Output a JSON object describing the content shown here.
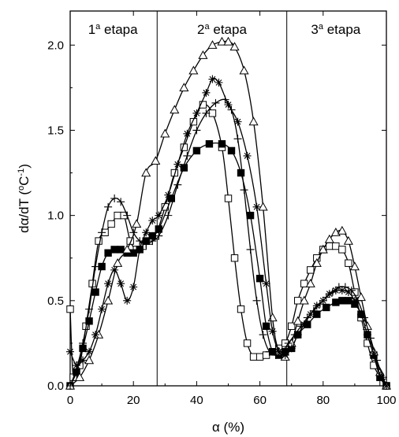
{
  "chart_data": {
    "type": "line",
    "xlabel": "α (%)",
    "ylabel_parts": {
      "base": "dα/dT (",
      "deg": "o",
      "unit": "C",
      "exp": "-1",
      "close": ")"
    },
    "xlim": [
      0,
      100
    ],
    "ylim": [
      0,
      2.2
    ],
    "xticks": [
      0,
      20,
      40,
      60,
      80,
      100
    ],
    "yticks": [
      0.0,
      0.5,
      1.0,
      1.5,
      2.0
    ],
    "xtick_labels": [
      "0",
      "20",
      "40",
      "60",
      "80",
      "100"
    ],
    "ytick_labels": [
      "0.0",
      "0.5",
      "1.0",
      "1.5",
      "2.0"
    ],
    "stage_dividers": [
      27.5,
      68.5
    ],
    "stages": [
      {
        "num": "1",
        "sup": "a",
        "word": " etapa",
        "x": 13.5
      },
      {
        "num": "2",
        "sup": "a",
        "word": " etapa",
        "x": 48
      },
      {
        "num": "3",
        "sup": "a",
        "word": " etapa",
        "x": 84
      }
    ],
    "grid": false,
    "legend": "none",
    "series": [
      {
        "marker": "open-square",
        "x": [
          0,
          1,
          3,
          5,
          7,
          9,
          11,
          13,
          15,
          17,
          19,
          21,
          23,
          25,
          27,
          30,
          33,
          36,
          39,
          42,
          45,
          48,
          50,
          52,
          54,
          56,
          58,
          60,
          62,
          64,
          66,
          68,
          70,
          72,
          74,
          76,
          78,
          80,
          82,
          84,
          86,
          88,
          90,
          92,
          94,
          96,
          98,
          99,
          100
        ],
        "y": [
          0.45,
          0.05,
          0.12,
          0.35,
          0.6,
          0.85,
          0.9,
          0.95,
          1.0,
          1.0,
          0.85,
          0.8,
          0.82,
          0.85,
          0.88,
          1.05,
          1.25,
          1.4,
          1.55,
          1.65,
          1.6,
          1.4,
          1.1,
          0.75,
          0.45,
          0.25,
          0.17,
          0.17,
          0.18,
          0.2,
          0.22,
          0.25,
          0.35,
          0.5,
          0.6,
          0.68,
          0.75,
          0.8,
          0.82,
          0.82,
          0.8,
          0.72,
          0.55,
          0.4,
          0.25,
          0.12,
          0.05,
          0.02,
          0.0
        ]
      },
      {
        "marker": "filled-square",
        "x": [
          0,
          2,
          4,
          6,
          8,
          10,
          12,
          14,
          16,
          18,
          20,
          22,
          24,
          26,
          28,
          32,
          36,
          40,
          44,
          48,
          51,
          54,
          57,
          60,
          62,
          64,
          66,
          68,
          70,
          72,
          75,
          78,
          81,
          84,
          86,
          88,
          90,
          92,
          94,
          96,
          98,
          100
        ],
        "y": [
          0.0,
          0.08,
          0.22,
          0.38,
          0.55,
          0.7,
          0.78,
          0.8,
          0.8,
          0.78,
          0.78,
          0.8,
          0.85,
          0.88,
          0.92,
          1.1,
          1.28,
          1.38,
          1.42,
          1.42,
          1.38,
          1.25,
          1.0,
          0.63,
          0.35,
          0.2,
          0.18,
          0.2,
          0.22,
          0.3,
          0.36,
          0.42,
          0.46,
          0.49,
          0.5,
          0.5,
          0.48,
          0.42,
          0.3,
          0.18,
          0.05,
          0.0
        ]
      },
      {
        "marker": "open-triangle",
        "x": [
          0,
          3,
          6,
          9,
          12,
          15,
          18,
          21,
          24,
          27,
          30,
          33,
          36,
          39,
          42,
          45,
          48,
          50,
          52,
          55,
          58,
          61,
          64,
          66,
          68,
          70,
          72,
          74,
          76,
          78,
          80,
          82,
          84,
          86,
          88,
          90,
          92,
          94,
          96,
          98,
          100
        ],
        "y": [
          0.0,
          0.05,
          0.15,
          0.3,
          0.5,
          0.72,
          0.8,
          0.95,
          1.25,
          1.32,
          1.48,
          1.62,
          1.75,
          1.85,
          1.94,
          2.0,
          2.02,
          2.02,
          1.99,
          1.85,
          1.55,
          1.05,
          0.4,
          0.2,
          0.17,
          0.25,
          0.38,
          0.5,
          0.6,
          0.72,
          0.8,
          0.86,
          0.9,
          0.91,
          0.85,
          0.7,
          0.52,
          0.35,
          0.2,
          0.08,
          0.0
        ]
      },
      {
        "marker": "asterisk",
        "x": [
          0,
          2,
          4,
          6,
          8,
          10,
          12,
          14,
          16,
          18,
          20,
          22,
          24,
          26,
          28,
          31,
          34,
          37,
          40,
          43,
          45,
          47,
          50,
          53,
          56,
          59,
          62,
          64,
          66,
          68,
          70,
          72,
          74,
          76,
          78,
          80,
          82,
          84,
          86,
          88,
          90,
          92,
          94,
          96,
          98,
          100
        ],
        "y": [
          0.2,
          0.12,
          0.15,
          0.2,
          0.3,
          0.45,
          0.6,
          0.68,
          0.6,
          0.5,
          0.58,
          0.8,
          0.9,
          0.97,
          1.0,
          1.12,
          1.3,
          1.48,
          1.6,
          1.72,
          1.8,
          1.78,
          1.65,
          1.55,
          1.35,
          1.05,
          0.6,
          0.32,
          0.2,
          0.18,
          0.22,
          0.3,
          0.36,
          0.42,
          0.47,
          0.5,
          0.54,
          0.56,
          0.56,
          0.55,
          0.5,
          0.42,
          0.3,
          0.18,
          0.06,
          0.0
        ]
      },
      {
        "marker": "plus",
        "x": [
          0,
          2,
          4,
          6,
          8,
          10,
          12,
          14,
          16,
          18,
          20,
          22,
          24,
          26,
          28,
          31,
          34,
          37,
          40,
          43,
          46,
          49,
          51,
          53,
          55,
          57,
          59,
          61,
          63,
          65,
          67,
          69,
          71,
          73,
          75,
          77,
          79,
          81,
          83,
          85,
          87,
          89,
          91,
          93,
          95,
          97,
          99,
          100
        ],
        "y": [
          0.0,
          0.1,
          0.25,
          0.45,
          0.7,
          0.9,
          1.05,
          1.1,
          1.08,
          1.0,
          0.9,
          0.85,
          0.83,
          0.85,
          0.88,
          1.0,
          1.18,
          1.35,
          1.5,
          1.6,
          1.66,
          1.68,
          1.62,
          1.45,
          1.15,
          0.8,
          0.5,
          0.3,
          0.2,
          0.18,
          0.2,
          0.25,
          0.3,
          0.35,
          0.4,
          0.44,
          0.48,
          0.52,
          0.55,
          0.58,
          0.58,
          0.56,
          0.5,
          0.4,
          0.28,
          0.15,
          0.05,
          0.0
        ]
      }
    ]
  }
}
